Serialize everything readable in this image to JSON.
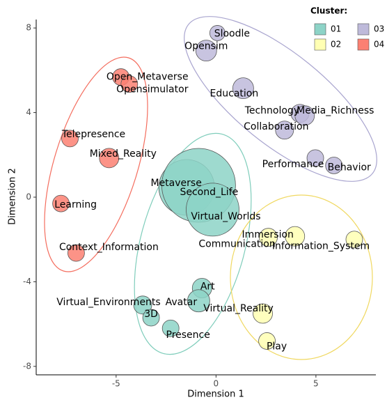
{
  "chart_data": {
    "type": "scatter",
    "x_label": "Dimension 1",
    "y_label": "Dimension 2",
    "legend_title": "Cluster:",
    "xlim": [
      -9,
      8
    ],
    "xticks": [
      -5,
      0,
      5
    ],
    "ylim": [
      -8.4,
      8.4
    ],
    "yticks": [
      -8,
      -4,
      0,
      4,
      8
    ],
    "legend": "top-right",
    "series": [
      {
        "name": "01",
        "color": "#8dd3c7",
        "labels": [
          "Metaverse",
          "Second_Life",
          "Virtual_Worlds",
          "Art",
          "Avatar",
          "Virtual_Environments",
          "3D",
          "Presence"
        ],
        "x": [
          -1.47,
          -0.87,
          -0.17,
          -0.7,
          -0.87,
          -3.67,
          -3.25,
          -2.27
        ],
        "y": [
          0.46,
          0.56,
          -0.59,
          -4.3,
          -4.9,
          -5.1,
          -5.7,
          -6.2
        ],
        "sizes": [
          40,
          53,
          38,
          14,
          16,
          13,
          12,
          12
        ]
      },
      {
        "name": "02",
        "color": "#ffffb3",
        "labels": [
          "Communication",
          "Immersion",
          "Information_System",
          "Virtual_Reality",
          "Play"
        ],
        "x": [
          2.62,
          3.95,
          6.92,
          2.34,
          2.55
        ],
        "y": [
          -1.9,
          -1.85,
          -2.0,
          -5.5,
          -6.8
        ],
        "sizes": [
          13,
          14,
          12,
          14,
          12
        ]
      },
      {
        "name": "03",
        "color": "#bebada",
        "labels": [
          "Sloodle",
          "Opensim",
          "Education",
          "Technology",
          "Media_Richness",
          "Collaboration",
          "Performance",
          "Behavior"
        ],
        "x": [
          0.07,
          -0.49,
          1.36,
          4.2,
          4.44,
          3.43,
          4.97,
          5.9
        ],
        "y": [
          7.76,
          6.93,
          5.15,
          3.96,
          3.86,
          3.17,
          1.85,
          1.5
        ],
        "sizes": [
          11,
          15,
          15,
          13,
          14,
          13,
          12,
          12
        ]
      },
      {
        "name": "04",
        "color": "#fb8072",
        "labels": [
          "Open_Metaverse",
          "Opensimulator",
          "Telepresence",
          "Mixed_Reality",
          "Learning",
          "Context_Information"
        ],
        "x": [
          -4.76,
          -4.34,
          -7.31,
          -5.35,
          -7.76,
          -7.0
        ],
        "y": [
          5.68,
          5.35,
          2.77,
          1.85,
          -0.3,
          -2.64
        ],
        "sizes": [
          12,
          12,
          12,
          14,
          12,
          12
        ]
      }
    ]
  }
}
